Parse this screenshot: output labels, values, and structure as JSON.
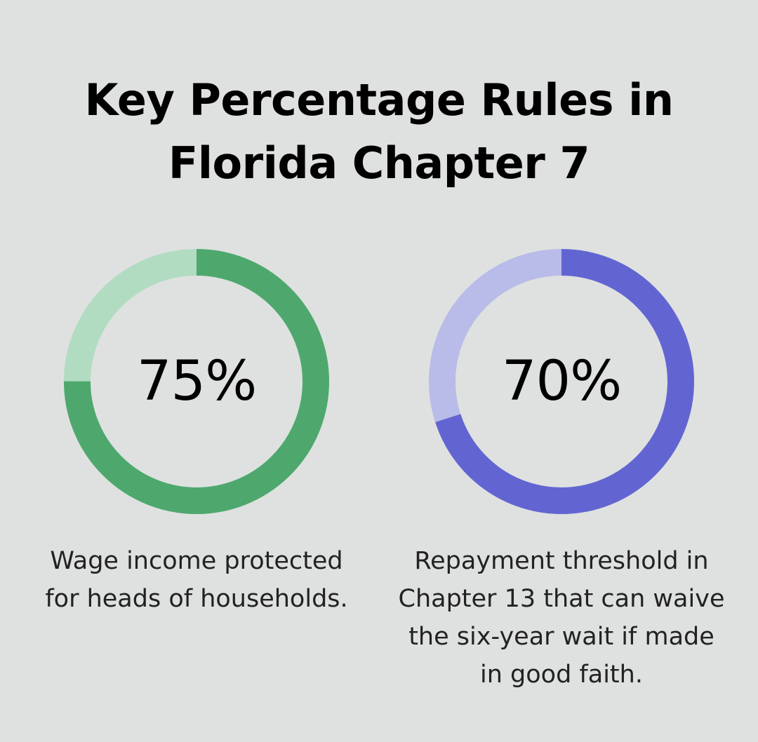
{
  "title_line1": "Key Percentage Rules in",
  "title_line2": "Florida Chapter 7",
  "chart_data": [
    {
      "type": "pie",
      "value": 75,
      "label": "75%",
      "caption": "Wage income protected for heads of households.",
      "colors": {
        "filled": "#4ea86e",
        "remaining": "#b1dcc1"
      }
    },
    {
      "type": "pie",
      "value": 70,
      "label": "70%",
      "caption": "Repayment threshold in Chapter 13 that can waive the six-year wait if made in good faith.",
      "colors": {
        "filled": "#6265d1",
        "remaining": "#b9bbe9"
      }
    }
  ]
}
